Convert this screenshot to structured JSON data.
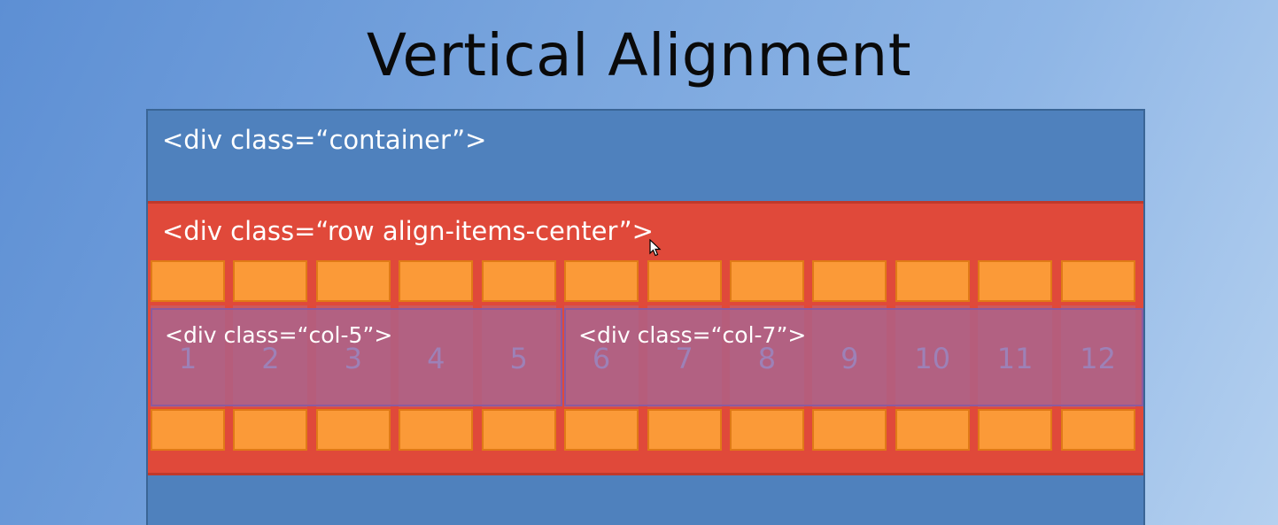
{
  "slide": {
    "title": "Vertical Alignment"
  },
  "container": {
    "label": "<div class=“container”>"
  },
  "row": {
    "label": "<div class=“row align-items-center”>"
  },
  "grid": {
    "columns": [
      "1",
      "2",
      "3",
      "4",
      "5",
      "6",
      "7",
      "8",
      "9",
      "10",
      "11",
      "12"
    ]
  },
  "cols": [
    {
      "label": "<div class=“col-5”>",
      "span": 5
    },
    {
      "label": "<div class=“col-7”>",
      "span": 7
    }
  ],
  "colors": {
    "background": "#6f9ddb",
    "container": "#4f81bd",
    "row": "#e0493a",
    "grid_cell": "#fb9a38",
    "col": "#ab638c"
  },
  "icons": {
    "cursor": "mouse-pointer-icon"
  }
}
